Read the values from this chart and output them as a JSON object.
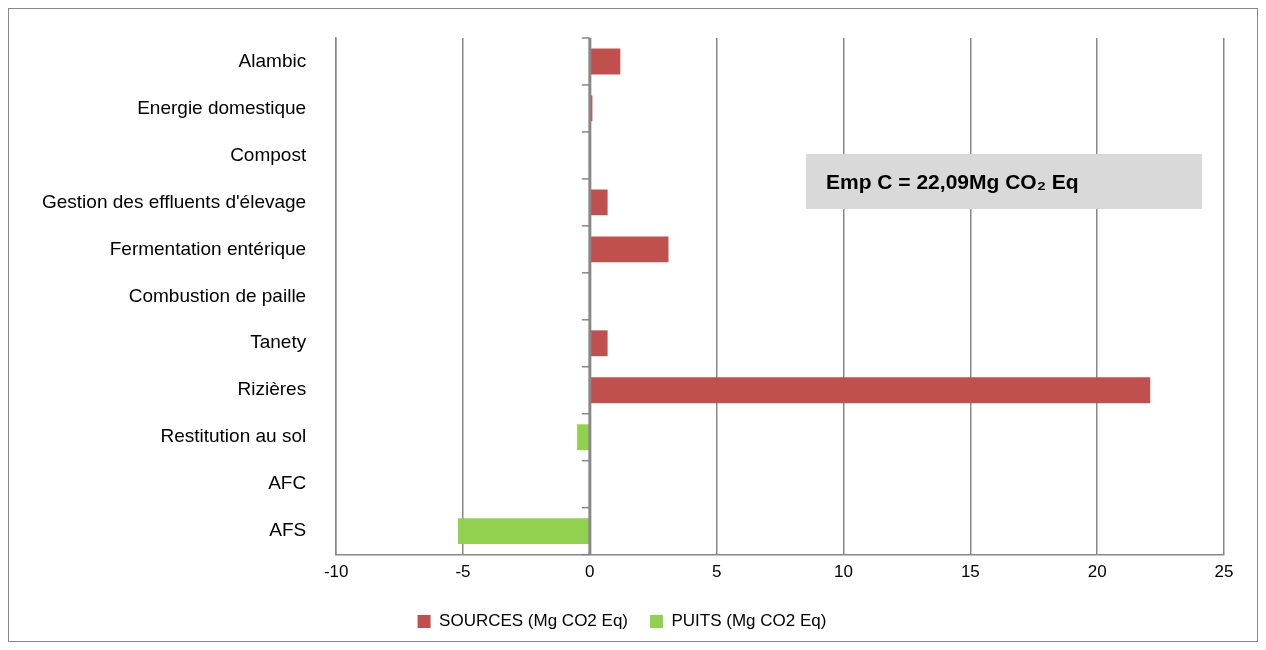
{
  "chart_data": {
    "type": "bar",
    "orientation": "horizontal",
    "stacked": true,
    "categories": [
      "Alambic",
      "Energie domestique",
      "Compost",
      "Gestion des effluents d'élevage",
      "Fermentation entérique",
      "Combustion de paille",
      "Tanety",
      "Rizières",
      "Restitution au sol",
      "AFC",
      "AFS"
    ],
    "series": [
      {
        "name": "SOURCES (Mg CO2 Eq)",
        "color": "#c0504d",
        "values": [
          1.2,
          0.1,
          null,
          0.7,
          3.1,
          null,
          0.7,
          22.09,
          null,
          null,
          null
        ]
      },
      {
        "name": "PUITS (Mg CO2 Eq)",
        "color": "#92d050",
        "values": [
          null,
          null,
          null,
          null,
          null,
          null,
          null,
          null,
          -0.5,
          null,
          -5.2
        ]
      }
    ],
    "xlim": [
      -10,
      25
    ],
    "xticks": [
      -10,
      -5,
      0,
      5,
      10,
      15,
      20,
      25
    ],
    "grid": "x",
    "legend": "bottom",
    "annotations": [
      "Emp C = 22,09Mg CO₂ Eq"
    ]
  }
}
